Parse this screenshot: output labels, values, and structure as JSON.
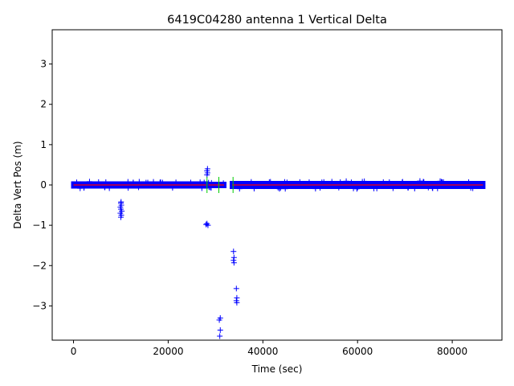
{
  "chart_data": {
    "type": "scatter",
    "title": "6419C04280 antenna 1 Vertical Delta",
    "xlabel": "Time (sec)",
    "ylabel": "Delta Vert Pos (m)",
    "xlim": [
      -4500,
      90500
    ],
    "ylim": [
      -3.85,
      3.85
    ],
    "x_ticks": [
      0,
      20000,
      40000,
      60000,
      80000
    ],
    "x_tick_labels": [
      "0",
      "20000",
      "40000",
      "60000",
      "80000"
    ],
    "y_ticks": [
      -3,
      -2,
      -1,
      0,
      1,
      2,
      3
    ],
    "y_tick_labels": [
      "−3",
      "−2",
      "−1",
      "0",
      "1",
      "2",
      "3"
    ],
    "grid": false,
    "colors": {
      "points": "#0000ff",
      "mean_line": "#ff0000",
      "sigma_bars": "#00cc00"
    },
    "dense_segments": [
      {
        "x_start": 0,
        "x_end": 28000,
        "y_min": -0.06,
        "y_max": 0.06
      },
      {
        "x_start": 28500,
        "x_end": 31800,
        "y_min": -0.05,
        "y_max": 0.05
      },
      {
        "x_start": 33500,
        "x_end": 86500,
        "y_min": -0.07,
        "y_max": 0.07
      }
    ],
    "outliers": [
      {
        "x": 10000,
        "y": -0.45
      },
      {
        "x": 10100,
        "y": -0.5
      },
      {
        "x": 9900,
        "y": -0.55
      },
      {
        "x": 10000,
        "y": -0.6
      },
      {
        "x": 10200,
        "y": -0.65
      },
      {
        "x": 9900,
        "y": -0.7
      },
      {
        "x": 10100,
        "y": -0.75
      },
      {
        "x": 10000,
        "y": -0.8
      },
      {
        "x": 10050,
        "y": -0.42
      },
      {
        "x": 28200,
        "y": 0.25
      },
      {
        "x": 28300,
        "y": 0.3
      },
      {
        "x": 28200,
        "y": 0.35
      },
      {
        "x": 28300,
        "y": 0.4
      },
      {
        "x": 28000,
        "y": -0.98
      },
      {
        "x": 28400,
        "y": -1.0
      },
      {
        "x": 28200,
        "y": -0.96
      },
      {
        "x": 31000,
        "y": -3.3
      },
      {
        "x": 30800,
        "y": -3.35
      },
      {
        "x": 31000,
        "y": -3.6
      },
      {
        "x": 30900,
        "y": -3.75
      },
      {
        "x": 33800,
        "y": -1.65
      },
      {
        "x": 33900,
        "y": -1.8
      },
      {
        "x": 33800,
        "y": -1.87
      },
      {
        "x": 33900,
        "y": -1.93
      },
      {
        "x": 34400,
        "y": -2.57
      },
      {
        "x": 34500,
        "y": -2.8
      },
      {
        "x": 34400,
        "y": -2.87
      },
      {
        "x": 34500,
        "y": -2.92
      }
    ],
    "mean_segments": [
      {
        "x_start": 0,
        "x_end": 28000,
        "y": 0.0
      },
      {
        "x_start": 28500,
        "x_end": 31800,
        "y": 0.0
      },
      {
        "x_start": 33500,
        "x_end": 86500,
        "y": 0.0
      }
    ],
    "sigma_bars": [
      {
        "x": 28200,
        "y_min": -0.2,
        "y_max": 0.2
      },
      {
        "x": 30700,
        "y_min": -0.2,
        "y_max": 0.2
      },
      {
        "x": 33700,
        "y_min": -0.2,
        "y_max": 0.2
      }
    ]
  }
}
